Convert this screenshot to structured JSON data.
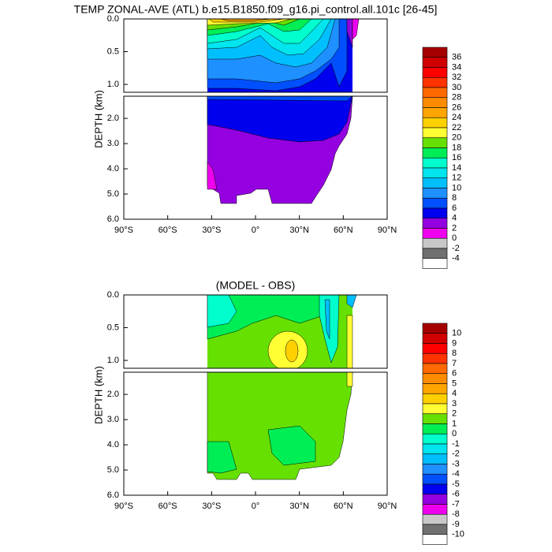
{
  "chart_data": [
    {
      "type": "contour",
      "title": "TEMP ZONAL-AVE (ATL) b.e15.B1850.f09_g16.pi_control.all.101c [26-45]",
      "ylabel": "DEPTH (km)",
      "xlim": [
        -90,
        90
      ],
      "ylim": [
        0,
        6
      ],
      "ybreak": 1.12,
      "y_inverted": true,
      "xticks": [
        {
          "value": -90,
          "label": "90°S"
        },
        {
          "value": -60,
          "label": "60°S"
        },
        {
          "value": -30,
          "label": "30°S"
        },
        {
          "value": 0,
          "label": "0°"
        },
        {
          "value": 30,
          "label": "30°N"
        },
        {
          "value": 60,
          "label": "60°N"
        },
        {
          "value": 90,
          "label": "90°N"
        }
      ],
      "yticks": [
        {
          "value": 0,
          "label": "0.0"
        },
        {
          "value": 0.5,
          "label": "0.5"
        },
        {
          "value": 1,
          "label": "1.0"
        },
        {
          "value": 2,
          "label": "2.0"
        },
        {
          "value": 3,
          "label": "3.0"
        },
        {
          "value": 4,
          "label": "4.0"
        },
        {
          "value": 5,
          "label": "5.0"
        },
        {
          "value": 6,
          "label": "6.0"
        }
      ],
      "colorbar": {
        "levels": [
          36,
          34,
          32,
          30,
          28,
          26,
          24,
          22,
          20,
          18,
          16,
          14,
          12,
          10,
          8,
          6,
          4,
          2,
          0,
          -2,
          -4
        ],
        "colors": [
          "#a50000",
          "#d00000",
          "#ff0000",
          "#ff3300",
          "#ff6a00",
          "#ff8c00",
          "#ffa500",
          "#ffd000",
          "#ffff33",
          "#66e000",
          "#00ee55",
          "#00ffcc",
          "#00e5ee",
          "#00bfff",
          "#1e90ff",
          "#0050ff",
          "#0000ee",
          "#9400e0",
          "#ee00ee",
          "#c8c8c8",
          "#707070",
          "#ffffff"
        ]
      }
    },
    {
      "type": "contour",
      "title": "(MODEL - OBS)",
      "ylabel": "DEPTH (km)",
      "xlim": [
        -90,
        90
      ],
      "ylim": [
        0,
        6
      ],
      "ybreak": 1.12,
      "y_inverted": true,
      "xticks": [
        {
          "value": -90,
          "label": "90°S"
        },
        {
          "value": -60,
          "label": "60°S"
        },
        {
          "value": -30,
          "label": "30°S"
        },
        {
          "value": 0,
          "label": "0°"
        },
        {
          "value": 30,
          "label": "30°N"
        },
        {
          "value": 60,
          "label": "60°N"
        },
        {
          "value": 90,
          "label": "90°N"
        }
      ],
      "yticks": [
        {
          "value": 0,
          "label": "0.0"
        },
        {
          "value": 0.5,
          "label": "0.5"
        },
        {
          "value": 1,
          "label": "1.0"
        },
        {
          "value": 2,
          "label": "2.0"
        },
        {
          "value": 3,
          "label": "3.0"
        },
        {
          "value": 4,
          "label": "4.0"
        },
        {
          "value": 5,
          "label": "5.0"
        },
        {
          "value": 6,
          "label": "6.0"
        }
      ],
      "colorbar": {
        "levels": [
          10,
          9,
          8,
          7,
          6,
          5,
          4,
          3,
          2,
          1,
          0,
          -1,
          -2,
          -3,
          -4,
          -5,
          -6,
          -7,
          -8,
          -9,
          -10
        ],
        "colors": [
          "#a50000",
          "#d00000",
          "#ff0000",
          "#ff3300",
          "#ff6a00",
          "#ff8c00",
          "#ffa500",
          "#ffd000",
          "#ffff33",
          "#66e000",
          "#00ee55",
          "#00ffcc",
          "#00e5ee",
          "#00bfff",
          "#1e90ff",
          "#0050ff",
          "#0000ee",
          "#9400e0",
          "#ee00ee",
          "#c8c8c8",
          "#707070",
          "#ffffff"
        ]
      }
    }
  ]
}
